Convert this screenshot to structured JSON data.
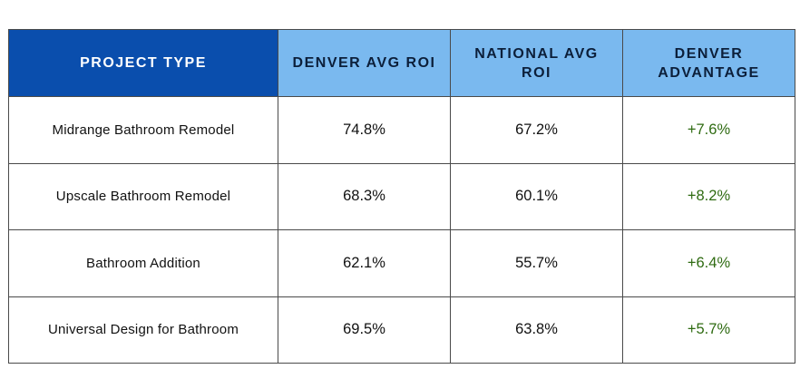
{
  "table": {
    "headers": {
      "project_type": "PROJECT TYPE",
      "denver_avg_roi": "DENVER AVG ROI",
      "national_avg_roi": "NATIONAL AVG ROI",
      "denver_advantage": "DENVER ADVANTAGE"
    },
    "rows": [
      {
        "project_type": "Midrange Bathroom Remodel",
        "denver": "74.8%",
        "national": "67.2%",
        "advantage": "+7.6%"
      },
      {
        "project_type": "Upscale Bathroom Remodel",
        "denver": "68.3%",
        "national": "60.1%",
        "advantage": "+8.2%"
      },
      {
        "project_type": "Bathroom Addition",
        "denver": "62.1%",
        "national": "55.7%",
        "advantage": "+6.4%"
      },
      {
        "project_type": "Universal Design for Bathroom",
        "denver": "69.5%",
        "national": "63.8%",
        "advantage": "+5.7%"
      }
    ]
  },
  "colors": {
    "header_dark": "#0a4ead",
    "header_light": "#7ab9ef",
    "advantage_text": "#2f6b12"
  }
}
